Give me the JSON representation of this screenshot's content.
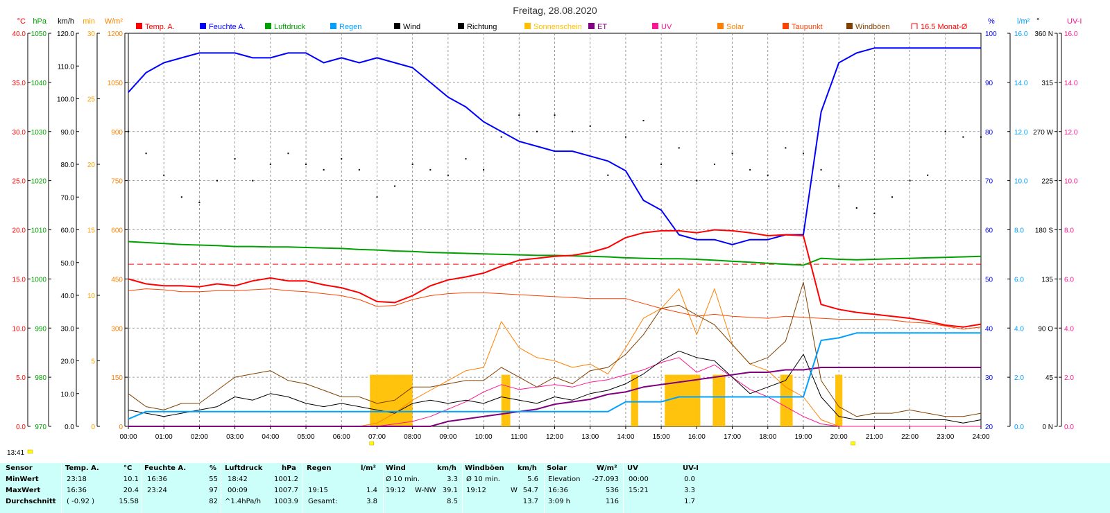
{
  "title": "Freitag, 28.08.2020",
  "timestamp_label": "13:41",
  "legend": [
    {
      "label": "Temp. A.",
      "color": "#ff0000",
      "type": "box"
    },
    {
      "label": "Feuchte A.",
      "color": "#0000ff",
      "type": "box"
    },
    {
      "label": "Luftdruck",
      "color": "#00a000",
      "type": "box"
    },
    {
      "label": "Regen",
      "color": "#00a0ff",
      "type": "box"
    },
    {
      "label": "Wind",
      "color": "#000000",
      "type": "box"
    },
    {
      "label": "Richtung",
      "color": "#000000",
      "type": "box"
    },
    {
      "label": "Sonnenschein",
      "color": "#ffc000",
      "type": "box"
    },
    {
      "label": "ET",
      "color": "#800080",
      "type": "box"
    },
    {
      "label": "UV",
      "color": "#ff1493",
      "type": "box"
    },
    {
      "label": "Solar",
      "color": "#ff8000",
      "type": "box"
    },
    {
      "label": "Taupunkt",
      "color": "#ff4000",
      "type": "box"
    },
    {
      "label": "Windböen",
      "color": "#804000",
      "type": "box"
    },
    {
      "label": "16.5 Monat-Ø",
      "color": "#ff0000",
      "type": "bracket"
    }
  ],
  "axes_left": [
    {
      "unit": "°C",
      "color": "#ff0000",
      "ticks": [
        "0.0",
        "5.0",
        "10.0",
        "15.0",
        "20.0",
        "25.0",
        "30.0",
        "35.0",
        "40.0"
      ]
    },
    {
      "unit": "hPa",
      "color": "#00a000",
      "ticks": [
        "970",
        "980",
        "990",
        "1000",
        "1010",
        "1020",
        "1030",
        "1040",
        "1050"
      ]
    },
    {
      "unit": "km/h",
      "color": "#000000",
      "ticks": [
        "0.0",
        "10.0",
        "20.0",
        "30.0",
        "40.0",
        "50.0",
        "60.0",
        "70.0",
        "80.0",
        "90.0",
        "100.0",
        "110.0",
        "120.0"
      ]
    },
    {
      "unit": "min",
      "color": "#ffa000",
      "ticks": [
        "0",
        "5",
        "10",
        "15",
        "20",
        "25",
        "30"
      ]
    },
    {
      "unit": "W/m²",
      "color": "#ff8000",
      "ticks": [
        "0",
        "150",
        "300",
        "450",
        "600",
        "750",
        "900",
        "1050",
        "1200"
      ]
    }
  ],
  "axes_right": [
    {
      "unit": "%",
      "color": "#0000ff",
      "ticks": [
        "20",
        "30",
        "40",
        "50",
        "60",
        "70",
        "80",
        "90",
        "100"
      ]
    },
    {
      "unit": "l/m²",
      "color": "#00a0ff",
      "ticks": [
        "0.0",
        "2.0",
        "4.0",
        "6.0",
        "8.0",
        "10.0",
        "12.0",
        "14.0",
        "16.0"
      ]
    },
    {
      "unit": "°",
      "color": "#000000",
      "ticks": [
        "0 N",
        "45",
        "90 O",
        "135",
        "180 S",
        "225",
        "270 W",
        "315",
        "360 N"
      ]
    },
    {
      "unit": "UV-I",
      "color": "#ff1493",
      "ticks": [
        "0.0",
        "2.0",
        "4.0",
        "6.0",
        "8.0",
        "10.0",
        "12.0",
        "14.0",
        "16.0"
      ]
    }
  ],
  "chart_data": {
    "type": "line",
    "title": "Freitag, 28.08.2020",
    "x": [
      "00:00",
      "00:30",
      "01:00",
      "01:30",
      "02:00",
      "02:30",
      "03:00",
      "03:30",
      "04:00",
      "04:30",
      "05:00",
      "05:30",
      "06:00",
      "06:30",
      "07:00",
      "07:30",
      "08:00",
      "08:30",
      "09:00",
      "09:30",
      "10:00",
      "10:30",
      "11:00",
      "11:30",
      "12:00",
      "12:30",
      "13:00",
      "13:30",
      "14:00",
      "14:30",
      "15:00",
      "15:30",
      "16:00",
      "16:30",
      "17:00",
      "17:30",
      "18:00",
      "18:30",
      "19:00",
      "19:30",
      "20:00",
      "20:30",
      "21:00",
      "21:30",
      "22:00",
      "22:30",
      "23:00",
      "23:30",
      "24:00"
    ],
    "x_ticks": [
      "00:00",
      "01:00",
      "02:00",
      "03:00",
      "04:00",
      "05:00",
      "06:00",
      "07:00",
      "08:00",
      "09:00",
      "10:00",
      "11:00",
      "12:00",
      "13:00",
      "14:00",
      "15:00",
      "16:00",
      "17:00",
      "18:00",
      "19:00",
      "20:00",
      "21:00",
      "22:00",
      "23:00",
      "24:00"
    ],
    "series": [
      {
        "name": "Temp. A.",
        "color": "#ff0000",
        "axis": "°C",
        "width": 2,
        "values": [
          15.0,
          14.5,
          14.3,
          14.3,
          14.2,
          14.5,
          14.3,
          14.8,
          15.1,
          14.8,
          14.8,
          14.4,
          14.1,
          13.6,
          12.7,
          12.6,
          13.3,
          14.3,
          14.9,
          15.2,
          15.6,
          16.3,
          16.9,
          17.1,
          17.3,
          17.4,
          17.7,
          18.2,
          19.2,
          19.7,
          19.9,
          19.9,
          19.7,
          20.0,
          19.9,
          19.7,
          19.4,
          19.5,
          19.4,
          12.4,
          11.9,
          11.6,
          11.4,
          11.2,
          11.0,
          10.7,
          10.3,
          10.1,
          10.4
        ]
      },
      {
        "name": "Feuchte A.",
        "color": "#0000ff",
        "axis": "%",
        "width": 2,
        "values": [
          88,
          92,
          94,
          95,
          96,
          96,
          96,
          95,
          95,
          96,
          96,
          94,
          95,
          94,
          95,
          94,
          93,
          90,
          87,
          85,
          82,
          80,
          78,
          77,
          76,
          76,
          75,
          74,
          72,
          66,
          64,
          59,
          58,
          58,
          57,
          58,
          58,
          59,
          59,
          84,
          94,
          96,
          97,
          97,
          97,
          97,
          97,
          97,
          97
        ]
      },
      {
        "name": "Luftdruck",
        "color": "#00a000",
        "axis": "hPa",
        "width": 2,
        "values": [
          1007.6,
          1007.4,
          1007.2,
          1007.0,
          1006.9,
          1006.8,
          1006.6,
          1006.6,
          1006.5,
          1006.5,
          1006.4,
          1006.3,
          1006.2,
          1006.0,
          1005.9,
          1005.7,
          1005.6,
          1005.4,
          1005.3,
          1005.2,
          1005.1,
          1005.0,
          1004.9,
          1004.8,
          1004.8,
          1004.7,
          1004.6,
          1004.5,
          1004.3,
          1004.2,
          1004.1,
          1004.1,
          1004.0,
          1003.8,
          1003.6,
          1003.4,
          1003.2,
          1003.0,
          1002.8,
          1004.2,
          1004.0,
          1003.9,
          1004.0,
          1004.1,
          1004.2,
          1004.3,
          1004.4,
          1004.5,
          1004.6
        ]
      },
      {
        "name": "Regen",
        "color": "#00a0ff",
        "axis": "l/m²",
        "width": 2,
        "values": [
          0.3,
          0.6,
          0.6,
          0.6,
          0.6,
          0.6,
          0.6,
          0.6,
          0.6,
          0.6,
          0.6,
          0.6,
          0.6,
          0.6,
          0.6,
          0.6,
          0.6,
          0.6,
          0.6,
          0.6,
          0.6,
          0.6,
          0.6,
          0.6,
          0.6,
          0.6,
          0.6,
          0.6,
          1.0,
          1.0,
          1.0,
          1.2,
          1.2,
          1.2,
          1.2,
          1.2,
          1.2,
          1.2,
          1.2,
          3.5,
          3.6,
          3.8,
          3.8,
          3.8,
          3.8,
          3.8,
          3.8,
          3.8,
          3.8
        ]
      },
      {
        "name": "Wind",
        "color": "#000000",
        "axis": "km/h",
        "width": 1,
        "values": [
          5,
          4,
          3,
          4,
          5,
          6,
          9,
          8,
          10,
          9,
          7,
          6,
          7,
          6,
          5,
          4,
          7,
          8,
          7,
          8,
          7,
          9,
          8,
          7,
          9,
          8,
          10,
          11,
          13,
          16,
          20,
          23,
          21,
          20,
          15,
          10,
          12,
          14,
          22,
          9,
          3,
          2,
          2,
          2,
          2,
          2,
          2,
          1,
          2
        ]
      },
      {
        "name": "Windböen",
        "color": "#804000",
        "axis": "km/h",
        "width": 1,
        "values": [
          10,
          6,
          5,
          7,
          7,
          11,
          15,
          16,
          17,
          14,
          13,
          11,
          9,
          9,
          7,
          8,
          12,
          12,
          13,
          14,
          14,
          18,
          15,
          12,
          15,
          13,
          17,
          18,
          22,
          28,
          36,
          37,
          34,
          31,
          25,
          19,
          21,
          26,
          44,
          14,
          6,
          3,
          4,
          4,
          5,
          4,
          3,
          3,
          4
        ]
      },
      {
        "name": "Solar",
        "color": "#ff8000",
        "axis": "W/m²",
        "width": 1,
        "values": [
          0,
          0,
          0,
          0,
          0,
          0,
          0,
          0,
          0,
          0,
          0,
          0,
          0,
          0,
          10,
          40,
          80,
          110,
          140,
          170,
          180,
          320,
          240,
          210,
          200,
          180,
          190,
          160,
          240,
          330,
          360,
          420,
          280,
          420,
          250,
          190,
          170,
          120,
          90,
          20,
          0,
          0,
          0,
          0,
          0,
          0,
          0,
          0,
          0
        ]
      },
      {
        "name": "UV",
        "color": "#ff1493",
        "axis": "UV-I",
        "width": 1,
        "values": [
          0,
          0,
          0,
          0,
          0,
          0,
          0,
          0,
          0,
          0,
          0,
          0,
          0,
          0,
          0,
          0.1,
          0.2,
          0.4,
          0.7,
          1.0,
          1.4,
          1.7,
          1.5,
          1.6,
          1.7,
          1.6,
          1.8,
          1.9,
          2.1,
          2.3,
          2.6,
          2.8,
          2.2,
          2.5,
          2.0,
          1.5,
          1.2,
          0.8,
          0.4,
          0.1,
          0,
          0,
          0,
          0,
          0,
          0,
          0,
          0,
          0
        ]
      },
      {
        "name": "Taupunkt",
        "color": "#ff4000",
        "axis": "°C",
        "width": 1,
        "values": [
          13.8,
          14.0,
          13.9,
          13.7,
          13.7,
          13.8,
          13.8,
          13.9,
          14.0,
          13.8,
          13.7,
          13.5,
          13.3,
          12.9,
          12.2,
          12.3,
          12.9,
          13.3,
          13.5,
          13.6,
          13.6,
          13.5,
          13.4,
          13.3,
          13.2,
          13.1,
          13.0,
          13.0,
          13.0,
          12.5,
          12.0,
          11.6,
          11.2,
          11.4,
          11.2,
          11.1,
          11.0,
          11.2,
          11.1,
          11.0,
          10.9,
          10.9,
          10.9,
          10.8,
          10.6,
          10.5,
          10.2,
          9.9,
          10.1
        ]
      },
      {
        "name": "ET",
        "color": "#800080",
        "axis": "l/m²",
        "width": 2,
        "values": [
          0,
          0,
          0,
          0,
          0,
          0,
          0,
          0,
          0,
          0,
          0,
          0,
          0,
          0,
          0,
          0,
          0,
          0,
          0.2,
          0.3,
          0.4,
          0.5,
          0.6,
          0.7,
          0.9,
          1.0,
          1.1,
          1.3,
          1.4,
          1.6,
          1.7,
          1.8,
          1.9,
          2.0,
          2.1,
          2.2,
          2.2,
          2.3,
          2.3,
          2.4,
          2.4,
          2.4,
          2.4,
          2.4,
          2.4,
          2.4,
          2.4,
          2.4,
          2.4
        ]
      }
    ],
    "direction_points": [
      [
        0.0,
        270
      ],
      [
        0.5,
        250
      ],
      [
        1.0,
        230
      ],
      [
        1.5,
        210
      ],
      [
        2.0,
        205
      ],
      [
        2.5,
        225
      ],
      [
        3.0,
        245
      ],
      [
        3.5,
        225
      ],
      [
        4.0,
        240
      ],
      [
        4.5,
        250
      ],
      [
        5.0,
        240
      ],
      [
        5.5,
        235
      ],
      [
        6.0,
        245
      ],
      [
        6.5,
        235
      ],
      [
        7.0,
        210
      ],
      [
        7.5,
        220
      ],
      [
        8.0,
        240
      ],
      [
        8.5,
        235
      ],
      [
        9.0,
        230
      ],
      [
        9.5,
        245
      ],
      [
        10.0,
        235
      ],
      [
        10.5,
        265
      ],
      [
        11.0,
        285
      ],
      [
        11.5,
        270
      ],
      [
        12.0,
        285
      ],
      [
        12.5,
        270
      ],
      [
        13.0,
        275
      ],
      [
        13.5,
        230
      ],
      [
        14.0,
        265
      ],
      [
        14.5,
        280
      ],
      [
        15.0,
        240
      ],
      [
        15.5,
        255
      ],
      [
        16.0,
        225
      ],
      [
        16.5,
        240
      ],
      [
        17.0,
        250
      ],
      [
        17.5,
        235
      ],
      [
        18.0,
        230
      ],
      [
        18.5,
        255
      ],
      [
        19.0,
        250
      ],
      [
        19.5,
        235
      ],
      [
        20.0,
        220
      ],
      [
        20.5,
        200
      ],
      [
        21.0,
        195
      ],
      [
        21.5,
        210
      ],
      [
        22.0,
        225
      ],
      [
        22.5,
        230
      ],
      [
        23.0,
        270
      ],
      [
        23.5,
        265
      ],
      [
        24.0,
        265
      ]
    ],
    "sunshine_bars": [
      [
        6.8,
        8.0
      ],
      [
        10.5,
        10.75
      ],
      [
        14.15,
        14.35
      ],
      [
        15.1,
        16.1
      ],
      [
        16.45,
        16.8
      ],
      [
        18.35,
        18.7
      ],
      [
        19.9,
        20.1
      ]
    ],
    "monthly_avg_temp": 16.5,
    "ylim_temp": [
      0,
      40
    ],
    "ylim_humidity": [
      20,
      100
    ]
  },
  "stats": {
    "headers": {
      "sensor": "Sensor",
      "temp": "Temp. A.",
      "temp_unit": "°C",
      "hum": "Feuchte A.",
      "hum_unit": "%",
      "press": "Luftdruck",
      "press_unit": "hPa",
      "rain": "Regen",
      "rain_unit": "l/m²",
      "wind": "Wind",
      "wind_unit": "km/h",
      "gust": "Windböen",
      "gust_unit": "km/h",
      "solar": "Solar",
      "solar_unit": "W/m²",
      "uv": "UV",
      "uvi": "UV-I"
    },
    "rows": [
      {
        "label": "MinWert",
        "temp_time": "23:18",
        "temp_val": "10.1",
        "hum_time": "16:36",
        "hum_val": "55",
        "press_time": "18:42",
        "press_val": "1001.2",
        "rain_time": "",
        "rain_val": "",
        "wind_time": "Ø 10 min.",
        "wind_dir": "",
        "wind_val": "3.3",
        "gust_time": "Ø 10 min.",
        "gust_dir": "",
        "gust_val": "5.6",
        "solar_time": "Elevation",
        "solar_val": "-27.093",
        "uv_time": "00:00",
        "uv_val": "0.0"
      },
      {
        "label": "MaxWert",
        "temp_time": "16:36",
        "temp_val": "20.4",
        "hum_time": "23:24",
        "hum_val": "97",
        "press_time": "00:09",
        "press_val": "1007.7",
        "rain_time": "19:15",
        "rain_val": "1.4",
        "wind_time": "19:12",
        "wind_dir": "W-NW",
        "wind_val": "39.1",
        "gust_time": "19:12",
        "gust_dir": "W",
        "gust_val": "54.7",
        "solar_time": "16:36",
        "solar_val": "536",
        "uv_time": "15:21",
        "uv_val": "3.3"
      },
      {
        "label": "Durchschnitt",
        "temp_time": "( -0.92 )",
        "temp_val": "15.58",
        "hum_time": "",
        "hum_val": "82",
        "press_time": "^1.4hPa/h",
        "press_val": "1003.9",
        "rain_time": "Gesamt:",
        "rain_val": "3.8",
        "wind_time": "",
        "wind_dir": "",
        "wind_val": "8.5",
        "gust_time": "",
        "gust_dir": "",
        "gust_val": "13.7",
        "solar_time": "3:09 h",
        "solar_val": "116",
        "uv_time": "",
        "uv_val": "1.7"
      }
    ]
  }
}
